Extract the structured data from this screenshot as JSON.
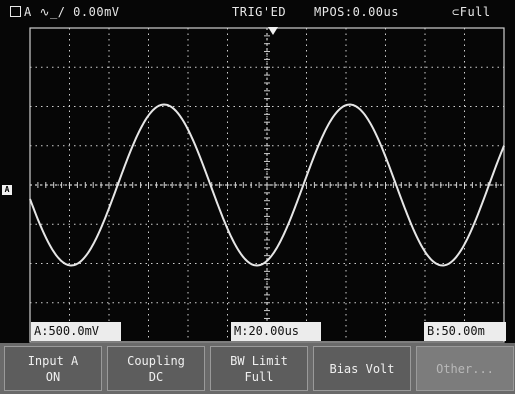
{
  "status_bar": {
    "channel_trigger": "A ∿_/ 0.00mV",
    "trigger_state": "TRIG'ED",
    "mpos": "MPOS:0.00us",
    "coupling_mode": "Full"
  },
  "scale_labels": {
    "volts_div": "A:500.0mV",
    "time_div": "M:20.00us",
    "right_label": "B:50.00m"
  },
  "menu": [
    {
      "line1": "Input A",
      "line2": "ON"
    },
    {
      "line1": "Coupling",
      "line2": "DC"
    },
    {
      "line1": "BW Limit",
      "line2": "Full"
    },
    {
      "line1": "Bias Volt",
      "line2": ""
    },
    {
      "line1": "Other...",
      "line2": ""
    }
  ],
  "markers": {
    "channel_marker": "A"
  },
  "waveform": {
    "type": "sine",
    "color": "#e6e6e6",
    "amplitude_div": 2.05,
    "offset_div": 0.0,
    "period_div": 4.7,
    "phase_deg": 190
  },
  "colors": {
    "screen_bg": "#060606",
    "grid": "#cfcfcf",
    "menu_bg": "#6a6a6a"
  }
}
